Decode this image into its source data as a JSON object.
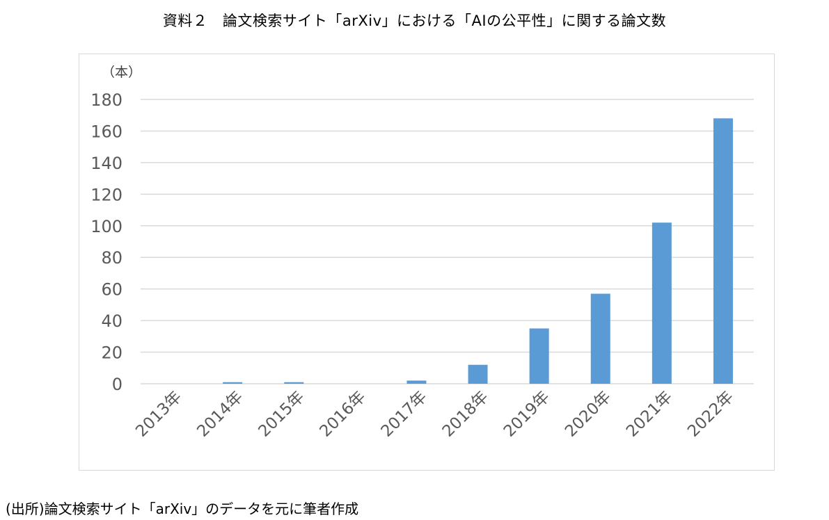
{
  "title": "資料２　論文検索サイト「arXiv」における「AIの公平性」に関する論文数",
  "source_note": "(出所)論文検索サイト「arXiv」のデータを元に筆者作成",
  "colors": {
    "bar": "#5b9bd5",
    "grid": "#d9d9d9",
    "tick_text": "#595959",
    "frame": "#d9d9d9"
  },
  "chart_data": {
    "type": "bar",
    "unit_label": "（本）",
    "categories": [
      "2013年",
      "2014年",
      "2015年",
      "2016年",
      "2017年",
      "2018年",
      "2019年",
      "2020年",
      "2021年",
      "2022年"
    ],
    "values": [
      0,
      1,
      1,
      0,
      2,
      12,
      35,
      57,
      102,
      168
    ],
    "ylim": [
      0,
      180
    ],
    "yticks": [
      0,
      20,
      40,
      60,
      80,
      100,
      120,
      140,
      160,
      180
    ],
    "grid": true,
    "legend": "none"
  }
}
